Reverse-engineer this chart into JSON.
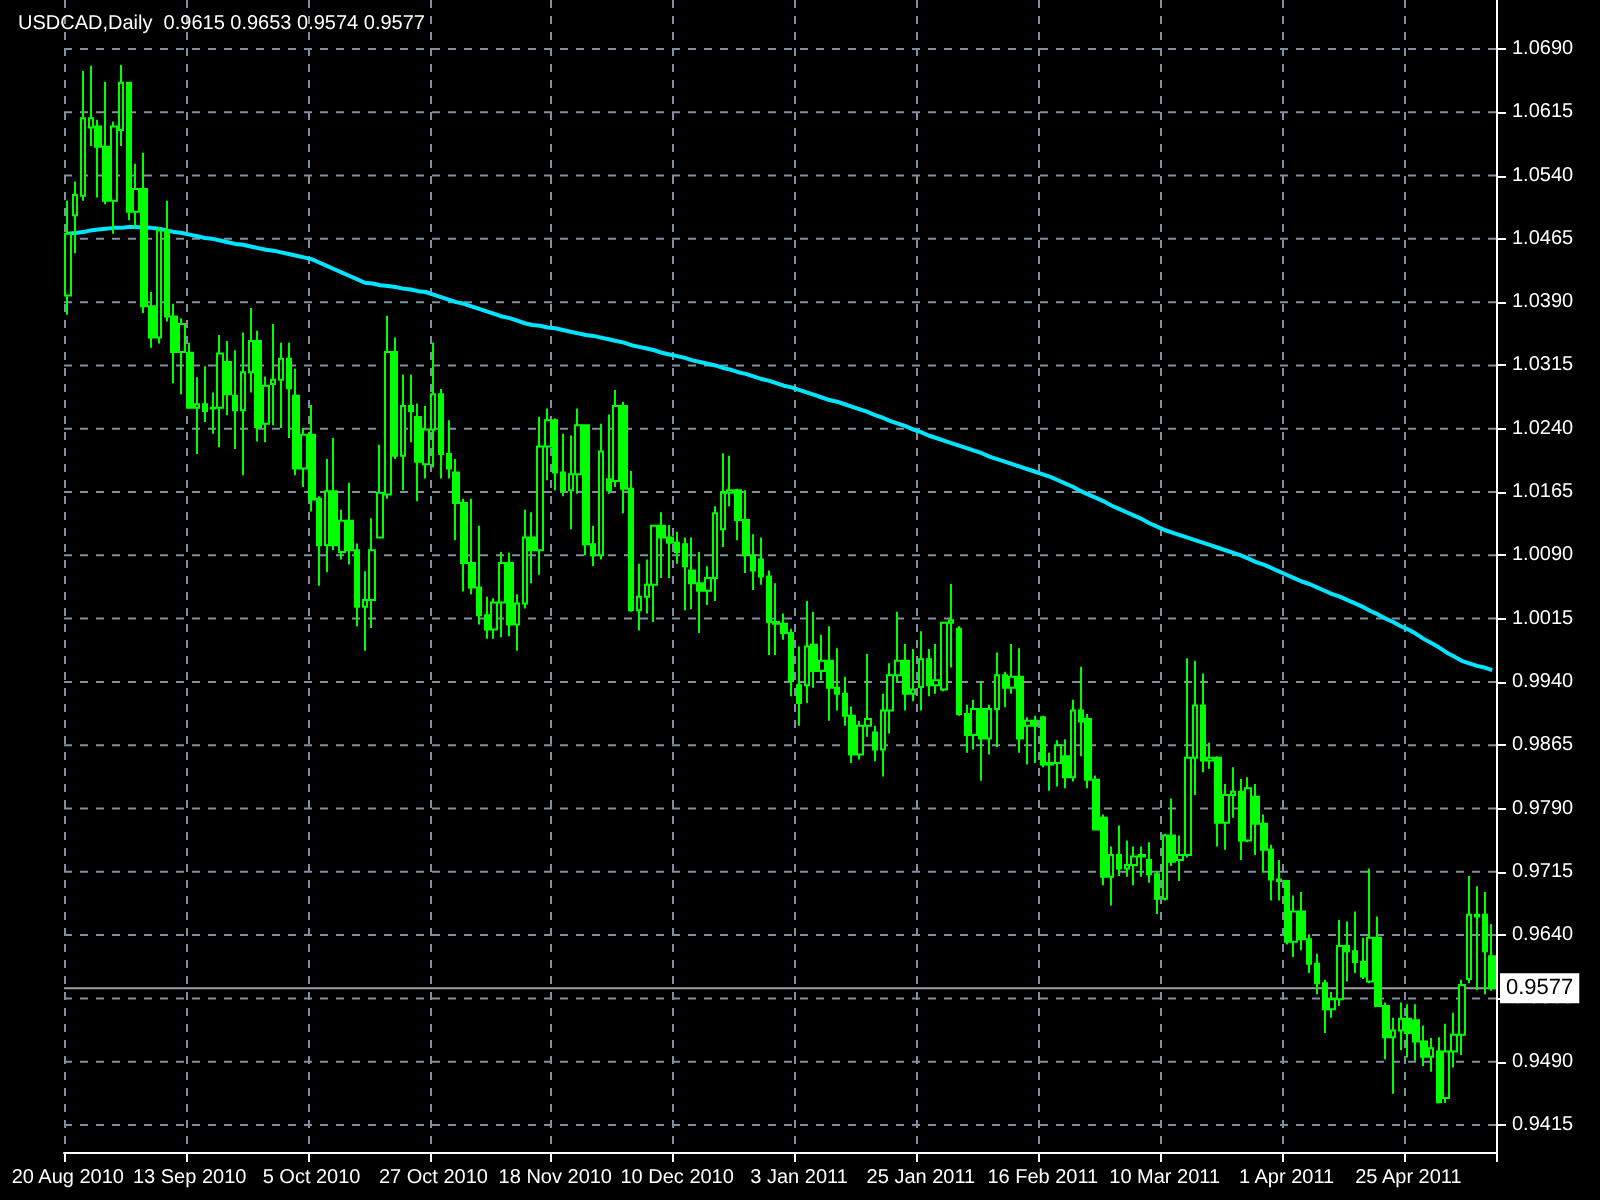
{
  "chart_data": {
    "type": "candlestick",
    "title": "USDCAD,Daily  0.9615 0.9653 0.9574 0.9577",
    "categories": [
      "20 Aug 2010",
      null,
      null,
      null,
      null,
      null,
      null,
      null,
      null,
      null,
      null,
      null,
      null,
      null,
      null,
      null,
      "13 Sep 2010",
      null,
      null,
      null,
      null,
      null,
      null,
      null,
      null,
      null,
      null,
      null,
      null,
      null,
      null,
      null,
      "5 Oct 2010",
      null,
      null,
      null,
      null,
      null,
      null,
      null,
      null,
      null,
      null,
      null,
      null,
      null,
      null,
      null,
      "27 Oct 2010",
      null,
      null,
      null,
      null,
      null,
      null,
      null,
      null,
      null,
      null,
      null,
      null,
      null,
      null,
      null,
      "18 Nov 2010",
      null,
      null,
      null,
      null,
      null,
      null,
      null,
      null,
      null,
      null,
      null,
      null,
      null,
      null,
      null,
      "10 Dec 2010",
      null,
      null,
      null,
      null,
      null,
      null,
      null,
      null,
      null,
      null,
      null,
      null,
      null,
      null,
      null,
      "3 Jan 2011",
      null,
      null,
      null,
      null,
      null,
      null,
      null,
      null,
      null,
      null,
      null,
      null,
      null,
      null,
      null,
      "25 Jan 2011",
      null,
      null,
      null,
      null,
      null,
      null,
      null,
      null,
      null,
      null,
      null,
      null,
      null,
      null,
      null,
      "16 Feb 2011",
      null,
      null,
      null,
      null,
      null,
      null,
      null,
      null,
      null,
      null,
      null,
      null,
      null,
      null,
      null,
      "10 Mar 2011",
      null,
      null,
      null,
      null,
      null,
      null,
      null,
      null,
      null,
      null,
      null,
      null,
      null,
      null,
      null,
      "1 Apr 2011",
      null,
      null,
      null,
      null,
      null,
      null,
      null,
      null,
      null,
      null,
      null,
      null,
      null,
      null,
      null,
      "25 Apr 2011",
      null,
      null,
      null,
      null,
      null,
      null,
      null,
      null,
      null,
      null,
      null
    ],
    "color": "#00ff00",
    "ohlc": [
      [
        1.0398,
        1.051,
        1.0375,
        1.0471
      ],
      [
        1.0493,
        1.0533,
        1.0448,
        1.0517
      ],
      [
        1.0516,
        1.0664,
        1.051,
        1.0608
      ],
      [
        1.0597,
        1.067,
        1.0575,
        1.0608
      ],
      [
        1.0598,
        1.0606,
        1.0514,
        1.0574
      ],
      [
        1.0574,
        1.0651,
        1.0506,
        1.051
      ],
      [
        1.051,
        1.0604,
        1.0471,
        1.0598
      ],
      [
        1.0594,
        1.0671,
        1.0575,
        1.065
      ],
      [
        1.065,
        1.065,
        1.0487,
        1.0497
      ],
      [
        1.0497,
        1.0554,
        1.0479,
        1.0524
      ],
      [
        1.0524,
        1.0567,
        1.0377,
        1.0385
      ],
      [
        1.0385,
        1.0402,
        1.0336,
        1.0348
      ],
      [
        1.0348,
        1.0479,
        1.0341,
        1.0475
      ],
      [
        1.0475,
        1.051,
        1.0367,
        1.0373
      ],
      [
        1.0373,
        1.0388,
        1.0294,
        1.0331
      ],
      [
        1.0331,
        1.0371,
        1.0281,
        1.0364
      ],
      [
        1.033,
        1.0342,
        1.0264,
        1.0265
      ],
      [
        1.0265,
        1.0301,
        1.021,
        1.0269
      ],
      [
        1.0269,
        1.0314,
        1.0248,
        1.0261
      ],
      [
        1.0264,
        1.0283,
        1.0234,
        1.0265
      ],
      [
        1.0265,
        1.0351,
        1.0218,
        1.0329
      ],
      [
        1.0319,
        1.0344,
        1.0256,
        1.0281
      ],
      [
        1.0279,
        1.0333,
        1.0216,
        1.0262
      ],
      [
        1.0262,
        1.0354,
        1.0185,
        1.0307
      ],
      [
        1.0307,
        1.0383,
        1.0283,
        1.0344
      ],
      [
        1.0344,
        1.0356,
        1.0225,
        1.0242
      ],
      [
        1.0246,
        1.0302,
        1.0224,
        1.0291
      ],
      [
        1.0293,
        1.0364,
        1.0244,
        1.0298
      ],
      [
        1.0298,
        1.0342,
        1.0241,
        1.0323
      ],
      [
        1.0323,
        1.0342,
        1.0229,
        1.0288
      ],
      [
        1.0279,
        1.0311,
        1.0185,
        1.0193
      ],
      [
        1.0193,
        1.0241,
        1.0171,
        1.0233
      ],
      [
        1.0233,
        1.0268,
        1.0142,
        1.0156
      ],
      [
        1.0157,
        1.016,
        1.0054,
        1.0102
      ],
      [
        1.0102,
        1.0204,
        1.007,
        1.0166
      ],
      [
        1.0166,
        1.0229,
        1.0096,
        1.0102
      ],
      [
        1.0094,
        1.0144,
        1.0085,
        1.0131
      ],
      [
        1.0131,
        1.0176,
        1.0079,
        1.0096
      ],
      [
        1.0096,
        1.0104,
        1.0006,
        1.0029
      ],
      [
        1.0029,
        1.0071,
        0.9977,
        1.0037
      ],
      [
        1.0037,
        1.0134,
        1.0004,
        1.0096
      ],
      [
        1.0111,
        1.0221,
        1.011,
        1.0164
      ],
      [
        1.0162,
        1.0374,
        1.0157,
        1.0331
      ],
      [
        1.0331,
        1.0348,
        1.0204,
        1.0208
      ],
      [
        1.0208,
        1.0304,
        1.0167,
        1.0267
      ],
      [
        1.0267,
        1.0304,
        1.0224,
        1.0261
      ],
      [
        1.0254,
        1.027,
        1.0154,
        1.0201
      ],
      [
        1.0198,
        1.0267,
        1.0181,
        1.0239
      ],
      [
        1.0239,
        1.0342,
        1.0194,
        1.0281
      ],
      [
        1.0281,
        1.0287,
        1.0181,
        1.021
      ],
      [
        1.021,
        1.025,
        1.0181,
        1.0193
      ],
      [
        1.0188,
        1.0204,
        1.0108,
        1.0152
      ],
      [
        1.0152,
        1.0157,
        1.0047,
        1.0081
      ],
      [
        1.0081,
        1.0157,
        1.0044,
        1.0052
      ],
      [
        1.0052,
        1.0125,
        1.0008,
        1.0019
      ],
      [
        1.0019,
        1.0041,
        0.9991,
        1.0002
      ],
      [
        1.0002,
        1.0039,
        0.9991,
        1.0034
      ],
      [
        1.0034,
        1.0094,
        0.9993,
        1.0081
      ],
      [
        1.0081,
        1.0093,
        0.9994,
        1.0008
      ],
      [
        1.0008,
        1.0044,
        0.9977,
        1.0033
      ],
      [
        1.0033,
        1.0144,
        1.0027,
        1.0111
      ],
      [
        1.0111,
        1.0141,
        1.0057,
        1.0096
      ],
      [
        1.0096,
        1.0254,
        1.0067,
        1.0219
      ],
      [
        1.0219,
        1.0264,
        1.0179,
        1.025
      ],
      [
        1.025,
        1.0252,
        1.0167,
        1.0188
      ],
      [
        1.0188,
        1.0234,
        1.016,
        1.0167
      ],
      [
        1.0167,
        1.0232,
        1.0121,
        1.0186
      ],
      [
        1.0186,
        1.0264,
        1.0163,
        1.0244
      ],
      [
        1.0244,
        1.0244,
        1.009,
        1.0103
      ],
      [
        1.0103,
        1.0125,
        1.0077,
        1.009
      ],
      [
        1.009,
        1.0246,
        1.0085,
        1.0213
      ],
      [
        1.018,
        1.0257,
        1.0163,
        1.0167
      ],
      [
        1.0178,
        1.0286,
        1.0171,
        1.0267
      ],
      [
        1.0267,
        1.0272,
        1.014,
        1.0169
      ],
      [
        1.0169,
        1.019,
        1.0023,
        1.0025
      ],
      [
        1.0025,
        1.008,
        1.0001,
        1.0041
      ],
      [
        1.0041,
        1.0085,
        1.0021,
        1.0055
      ],
      [
        1.0055,
        1.0125,
        1.0011,
        1.0125
      ],
      [
        1.0125,
        1.0141,
        1.0063,
        1.0111
      ],
      [
        1.0111,
        1.0126,
        1.0063,
        1.0105
      ],
      [
        1.0105,
        1.0118,
        1.008,
        1.0094
      ],
      [
        1.0103,
        1.0111,
        1.0025,
        1.0077
      ],
      [
        1.0072,
        1.0111,
        1.0026,
        1.0057
      ],
      [
        1.0057,
        1.0094,
        0.9998,
        1.0048
      ],
      [
        1.0048,
        1.0077,
        1.0031,
        1.0063
      ],
      [
        1.0063,
        1.0148,
        1.0036,
        1.014
      ],
      [
        1.0121,
        1.0211,
        1.01,
        1.0164
      ],
      [
        1.0164,
        1.0208,
        1.0148,
        1.0167
      ],
      [
        1.0167,
        1.0169,
        1.0108,
        1.0132
      ],
      [
        1.0132,
        1.0167,
        1.0069,
        1.009
      ],
      [
        1.009,
        1.0115,
        1.0049,
        1.0072
      ],
      [
        1.0085,
        1.0111,
        1.0055,
        1.0065
      ],
      [
        1.0065,
        1.0072,
        0.9972,
        1.0011
      ],
      [
        1.0011,
        1.0057,
        0.9972,
        1.0009
      ],
      [
        1.0009,
        1.0021,
        0.999,
        0.9998
      ],
      [
        0.9998,
        1.0003,
        0.9923,
        0.9941
      ],
      [
        0.9936,
        0.9982,
        0.9888,
        0.9915
      ],
      [
        0.9936,
        1.0036,
        0.9915,
        0.9982
      ],
      [
        0.9984,
        1.0023,
        0.9933,
        0.9953
      ],
      [
        0.9953,
        0.9996,
        0.9942,
        0.9965
      ],
      [
        0.9965,
        1.0006,
        0.9894,
        0.9933
      ],
      [
        0.9933,
        0.998,
        0.9906,
        0.9926
      ],
      [
        0.9926,
        0.9946,
        0.9888,
        0.99
      ],
      [
        0.99,
        0.9911,
        0.9844,
        0.9854
      ],
      [
        0.9854,
        0.9894,
        0.9848,
        0.9888
      ],
      [
        0.9888,
        0.9973,
        0.9875,
        0.9896
      ],
      [
        0.988,
        0.9888,
        0.9846,
        0.986
      ],
      [
        0.986,
        0.9926,
        0.9828,
        0.9906
      ],
      [
        0.9906,
        0.9962,
        0.9879,
        0.9948
      ],
      [
        0.9948,
        1.0023,
        0.994,
        0.9965
      ],
      [
        0.9965,
        0.9985,
        0.9906,
        0.9926
      ],
      [
        0.9926,
        0.9979,
        0.9917,
        0.9931
      ],
      [
        0.9934,
        1.0,
        0.9906,
        0.9967
      ],
      [
        0.9967,
        0.9979,
        0.9923,
        0.9936
      ],
      [
        0.9936,
        0.9985,
        0.9926,
        0.9942
      ],
      [
        0.9931,
        1.0011,
        0.9929,
        1.001
      ],
      [
        1.001,
        1.0056,
        0.9957,
        1.0013
      ],
      [
        1.0003,
        1.0006,
        0.99,
        0.9902
      ],
      [
        0.9902,
        0.9913,
        0.9856,
        0.9877
      ],
      [
        0.9877,
        0.9919,
        0.986,
        0.9908
      ],
      [
        0.9908,
        0.994,
        0.9823,
        0.9873
      ],
      [
        0.9873,
        0.9913,
        0.9854,
        0.9908
      ],
      [
        0.9908,
        0.9975,
        0.9863,
        0.9948
      ],
      [
        0.9948,
        0.9952,
        0.991,
        0.9933
      ],
      [
        0.9933,
        0.9985,
        0.9926,
        0.9946
      ],
      [
        0.9946,
        0.998,
        0.9856,
        0.9873
      ],
      [
        0.9888,
        0.9898,
        0.9842,
        0.9894
      ],
      [
        0.9894,
        0.99,
        0.9844,
        0.9888
      ],
      [
        0.9898,
        0.99,
        0.9839,
        0.9842
      ],
      [
        0.9842,
        0.9856,
        0.9811,
        0.9844
      ],
      [
        0.9844,
        0.9871,
        0.9816,
        0.9865
      ],
      [
        0.9852,
        0.9872,
        0.9814,
        0.9827
      ],
      [
        0.9827,
        0.9919,
        0.9822,
        0.9906
      ],
      [
        0.9906,
        0.9958,
        0.9852,
        0.9893
      ],
      [
        0.9896,
        0.9902,
        0.9814,
        0.9824
      ],
      [
        0.9824,
        0.9829,
        0.9764,
        0.9765
      ],
      [
        0.9779,
        0.9783,
        0.9699,
        0.9709
      ],
      [
        0.9709,
        0.9745,
        0.9675,
        0.9735
      ],
      [
        0.9735,
        0.977,
        0.971,
        0.9719
      ],
      [
        0.9719,
        0.9752,
        0.9709,
        0.9723
      ],
      [
        0.9723,
        0.9745,
        0.9699,
        0.9733
      ],
      [
        0.9733,
        0.9745,
        0.9709,
        0.9735
      ],
      [
        0.9729,
        0.975,
        0.9702,
        0.9712
      ],
      [
        0.9712,
        0.9716,
        0.9665,
        0.9683
      ],
      [
        0.9683,
        0.976,
        0.9681,
        0.9758
      ],
      [
        0.9758,
        0.9802,
        0.9722,
        0.9727
      ],
      [
        0.9729,
        0.9758,
        0.9704,
        0.9735
      ],
      [
        0.9735,
        0.9968,
        0.9732,
        0.985
      ],
      [
        0.985,
        0.9965,
        0.9806,
        0.9912
      ],
      [
        0.9912,
        0.995,
        0.9833,
        0.9847
      ],
      [
        0.9847,
        0.9868,
        0.9837,
        0.985
      ],
      [
        0.985,
        0.9852,
        0.9745,
        0.9773
      ],
      [
        0.9773,
        0.9819,
        0.9741,
        0.9806
      ],
      [
        0.9806,
        0.9839,
        0.9779,
        0.981
      ],
      [
        0.981,
        0.9825,
        0.9729,
        0.9752
      ],
      [
        0.9752,
        0.9827,
        0.975,
        0.9814
      ],
      [
        0.9804,
        0.9819,
        0.9735,
        0.9772
      ],
      [
        0.9772,
        0.9783,
        0.9714,
        0.9741
      ],
      [
        0.9741,
        0.9747,
        0.9681,
        0.9706
      ],
      [
        0.9706,
        0.9729,
        0.9681,
        0.9704
      ],
      [
        0.9704,
        0.9704,
        0.9629,
        0.9632
      ],
      [
        0.9632,
        0.9687,
        0.9614,
        0.9668
      ],
      [
        0.9668,
        0.9691,
        0.9622,
        0.9635
      ],
      [
        0.9635,
        0.9641,
        0.9595,
        0.9606
      ],
      [
        0.9606,
        0.9618,
        0.957,
        0.9583
      ],
      [
        0.9583,
        0.9587,
        0.9524,
        0.9552
      ],
      [
        0.9552,
        0.9573,
        0.9542,
        0.9564
      ],
      [
        0.9564,
        0.9658,
        0.9556,
        0.9627
      ],
      [
        0.9627,
        0.9656,
        0.9585,
        0.9621
      ],
      [
        0.9621,
        0.9668,
        0.9595,
        0.9608
      ],
      [
        0.9608,
        0.9637,
        0.9588,
        0.9591
      ],
      [
        0.9585,
        0.9719,
        0.9583,
        0.9637
      ],
      [
        0.9637,
        0.9662,
        0.9555,
        0.9556
      ],
      [
        0.9556,
        0.956,
        0.9493,
        0.9519
      ],
      [
        0.9519,
        0.9542,
        0.9452,
        0.9527
      ],
      [
        0.9527,
        0.956,
        0.9504,
        0.9541
      ],
      [
        0.9541,
        0.9558,
        0.9495,
        0.9524
      ],
      [
        0.9539,
        0.9558,
        0.9491,
        0.9514
      ],
      [
        0.9514,
        0.9533,
        0.9485,
        0.9496
      ],
      [
        0.9496,
        0.9518,
        0.9478,
        0.9506
      ],
      [
        0.9502,
        0.9519,
        0.9441,
        0.9442
      ],
      [
        0.9447,
        0.9535,
        0.9441,
        0.9502
      ],
      [
        0.9502,
        0.9548,
        0.9483,
        0.9522
      ],
      [
        0.9522,
        0.9587,
        0.9498,
        0.9581
      ],
      [
        0.9588,
        0.971,
        0.9583,
        0.9664
      ],
      [
        0.9664,
        0.9698,
        0.9575,
        0.9662
      ],
      [
        0.9664,
        0.9691,
        0.957,
        0.9621
      ],
      [
        0.9615,
        0.9653,
        0.9574,
        0.9577
      ]
    ],
    "series": [
      {
        "type": "line",
        "color": "#00e5ff",
        "values": [
          1.0471,
          1.0472,
          1.0473,
          1.0475,
          1.0476,
          1.0477,
          1.0478,
          1.0478,
          1.0479,
          1.0479,
          1.0478,
          1.0478,
          1.0477,
          1.0475,
          1.0473,
          1.0472,
          1.047,
          1.0468,
          1.0466,
          1.0465,
          1.0463,
          1.0461,
          1.0459,
          1.0458,
          1.0456,
          1.0454,
          1.0452,
          1.0451,
          1.0449,
          1.0447,
          1.0445,
          1.0443,
          1.0441,
          1.0437,
          1.0433,
          1.0429,
          1.0425,
          1.0421,
          1.0417,
          1.0413,
          1.0412,
          1.041,
          1.0409,
          1.0408,
          1.0406,
          1.0405,
          1.0403,
          1.0402,
          1.0399,
          1.0396,
          1.0393,
          1.039,
          1.0388,
          1.0385,
          1.0382,
          1.0379,
          1.0376,
          1.0373,
          1.0371,
          1.0368,
          1.0365,
          1.0363,
          1.0362,
          1.036,
          1.0359,
          1.0357,
          1.0355,
          1.0353,
          1.0351,
          1.035,
          1.0348,
          1.0346,
          1.0344,
          1.0342,
          1.0339,
          1.0337,
          1.0335,
          1.0333,
          1.033,
          1.0328,
          1.0326,
          1.0324,
          1.0321,
          1.0319,
          1.0317,
          1.0315,
          1.0312,
          1.031,
          1.0307,
          1.0305,
          1.0302,
          1.0299,
          1.0297,
          1.0294,
          1.0291,
          1.0289,
          1.0286,
          1.0283,
          1.028,
          1.0277,
          1.0274,
          1.0272,
          1.0269,
          1.0266,
          1.0263,
          1.026,
          1.0256,
          1.0253,
          1.0249,
          1.0246,
          1.0243,
          1.0239,
          1.0236,
          1.0232,
          1.0229,
          1.0226,
          1.0223,
          1.022,
          1.0217,
          1.0214,
          1.0211,
          1.0207,
          1.0204,
          1.0201,
          1.0198,
          1.0195,
          1.0192,
          1.0189,
          1.0186,
          1.0183,
          1.0179,
          1.0175,
          1.0171,
          1.0166,
          1.0162,
          1.0158,
          1.0154,
          1.0149,
          1.0145,
          1.0141,
          1.0137,
          1.0133,
          1.0128,
          1.0124,
          1.012,
          1.0117,
          1.0114,
          1.0111,
          1.0108,
          1.0105,
          1.0102,
          1.0099,
          1.0096,
          1.0093,
          1.009,
          1.0086,
          1.0082,
          1.0079,
          1.0075,
          1.0071,
          1.0067,
          1.0063,
          1.0059,
          1.0056,
          1.0052,
          1.0048,
          1.0044,
          1.0041,
          1.0037,
          1.0033,
          1.0029,
          1.0024,
          1.002,
          1.0015,
          1.0011,
          1.0006,
          1.0002,
          0.9997,
          0.9991,
          0.9986,
          0.9981,
          0.9975,
          0.997,
          0.9965,
          0.9962,
          0.9959,
          0.9957,
          0.9954
        ]
      }
    ],
    "ylim": [
      0.9383,
      1.0748
    ],
    "yticks": [
      0.9415,
      {
        "value": 0.949,
        "label": "0.9490"
      },
      0.9565,
      {
        "value": 0.964,
        "label": "0.9640"
      },
      0.9715,
      {
        "value": 0.979,
        "label": "0.9790"
      },
      0.9865,
      {
        "value": 0.994,
        "label": "0.9940"
      },
      1.0015,
      {
        "value": 1.009,
        "label": "1.0090"
      },
      1.0165,
      {
        "value": 1.024,
        "label": "1.0240"
      },
      1.0315,
      {
        "value": 1.039,
        "label": "1.0390"
      },
      1.0465,
      {
        "value": 1.054,
        "label": "1.0540"
      },
      1.0615,
      {
        "value": 1.069,
        "label": "1.0690"
      }
    ],
    "ref_lines": [
      {
        "axis": "y",
        "value": 0.9577,
        "label": "0.9577",
        "color": "#a0a0a0"
      }
    ],
    "grid": true
  }
}
